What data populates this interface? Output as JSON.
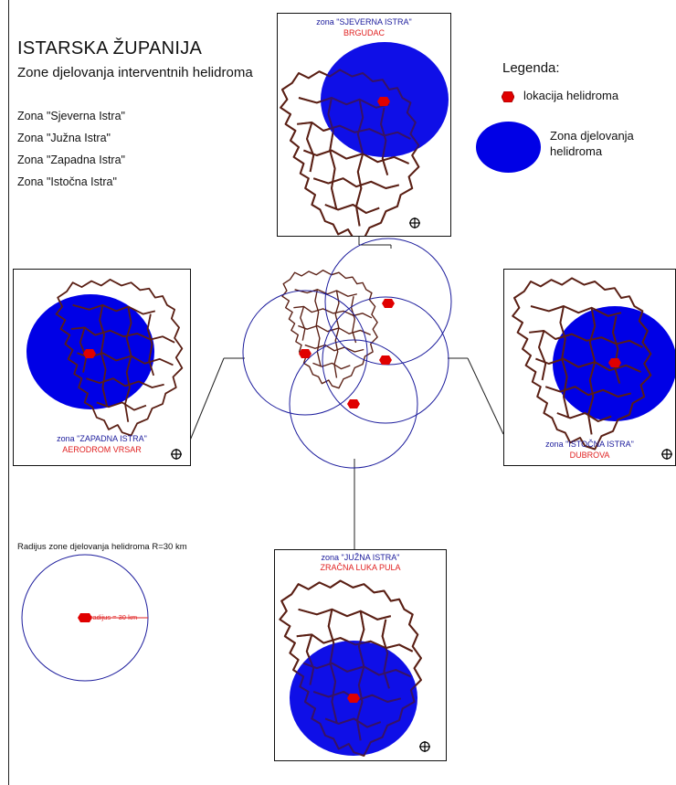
{
  "header": {
    "title": "ISTARSKA ŽUPANIJA",
    "subtitle": "Zone djelovanja interventnih helidroma"
  },
  "zones_list": [
    "Zona \"Sjeverna Istra\"",
    "Zona \"Južna Istra\"",
    "Zona \"Zapadna Istra\"",
    "Zona \"Istočna Istra\""
  ],
  "legend": {
    "title": "Legenda:",
    "helipad_label": "lokacija helidroma",
    "zone_label": "Zona djelovanja helidroma"
  },
  "panels": {
    "north": {
      "zone": "zona \"SJEVERNA ISTRA\"",
      "name": "BRGUDAC"
    },
    "west": {
      "zone": "zona \"ZAPADNA ISTRA\"",
      "name": "AERODROM VRSAR"
    },
    "east": {
      "zone": "zona \"ISTOČNA ISTRA\"",
      "name": "DUBROVA"
    },
    "south": {
      "zone": "zona \"JUŽNA ISTRA\"",
      "name": "ZRAČNA LUKA PULA"
    }
  },
  "radius_note": {
    "title": "Radijus zone djelovanja helidroma R=30 km",
    "label": "radijus = 30 km"
  },
  "colors": {
    "zone_fill": "#0000e6",
    "helipad": "#e00000",
    "border": "#5a1f14",
    "outline_circle": "#1b1b9c"
  }
}
